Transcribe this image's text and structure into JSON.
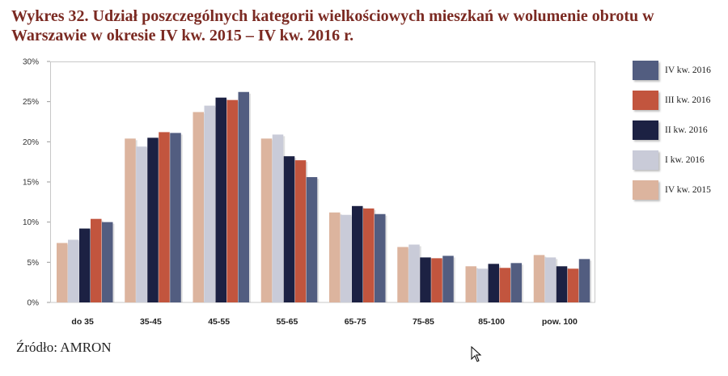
{
  "title": "Wykres 32. Udział poszczególnych kategorii wielkościowych mieszkań w wolumenie obrotu w Warszawie w okresie IV kw. 2015 – IV kw. 2016 r.",
  "source": "Źródło: AMRON",
  "chart_data": {
    "type": "bar",
    "categories": [
      "do 35",
      "35-45",
      "45-55",
      "55-65",
      "65-75",
      "75-85",
      "85-100",
      "pow. 100"
    ],
    "ylim": [
      0,
      30
    ],
    "yticks": [
      "0%",
      "5%",
      "10%",
      "15%",
      "20%",
      "25%",
      "30%"
    ],
    "grid": false,
    "legend_position": "right",
    "series": [
      {
        "name": "IV kw. 2015",
        "color": "#dcb49e",
        "values": [
          7.4,
          20.4,
          23.7,
          20.4,
          11.2,
          6.9,
          4.5,
          5.9
        ]
      },
      {
        "name": "I kw. 2016",
        "color": "#c9cbd8",
        "values": [
          7.8,
          19.4,
          24.5,
          20.9,
          10.9,
          7.2,
          4.2,
          5.6
        ]
      },
      {
        "name": "II kw. 2016",
        "color": "#1c2143",
        "values": [
          9.2,
          20.5,
          25.5,
          18.2,
          12.0,
          5.6,
          4.8,
          4.5
        ]
      },
      {
        "name": "III kw. 2016",
        "color": "#c2553e",
        "values": [
          10.4,
          21.2,
          25.2,
          17.7,
          11.7,
          5.5,
          4.3,
          4.2
        ]
      },
      {
        "name": "IV kw. 2016",
        "color": "#525d80",
        "values": [
          10.0,
          21.1,
          26.2,
          15.6,
          11.0,
          5.8,
          4.9,
          5.4
        ]
      }
    ],
    "legend_order": [
      "IV kw. 2016",
      "III kw. 2016",
      "II kw. 2016",
      "I kw. 2016",
      "IV kw. 2015"
    ]
  }
}
